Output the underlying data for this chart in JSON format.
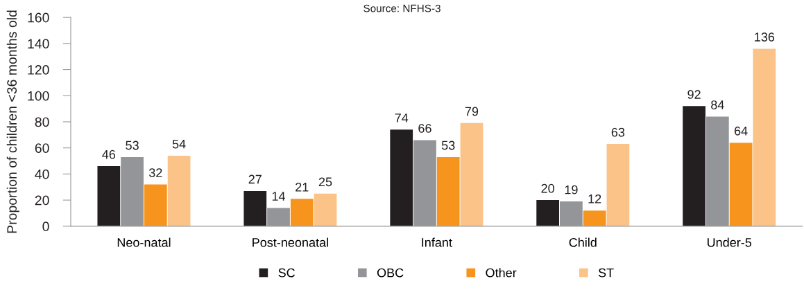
{
  "chart_data": {
    "type": "bar",
    "annotations": [
      "Source: NFHS-3"
    ],
    "ylabel": "Proportion of children <36 months old",
    "categories": [
      "Neo-natal",
      "Post-neonatal",
      "Infant",
      "Child",
      "Under-5"
    ],
    "series": [
      {
        "name": "SC",
        "color": "#231f20",
        "values": [
          46,
          27,
          74,
          20,
          92
        ]
      },
      {
        "name": "OBC",
        "color": "#939598",
        "values": [
          53,
          14,
          66,
          19,
          84
        ]
      },
      {
        "name": "Other",
        "color": "#f7941d",
        "values": [
          32,
          21,
          53,
          12,
          64
        ]
      },
      {
        "name": "ST",
        "color": "#fbc387",
        "values": [
          54,
          25,
          79,
          63,
          136
        ]
      }
    ],
    "ylim": [
      0,
      160
    ],
    "yticks": [
      0,
      20,
      40,
      60,
      80,
      100,
      120,
      140,
      160
    ],
    "data_labels": true,
    "grid": false,
    "legend": "bottom"
  }
}
